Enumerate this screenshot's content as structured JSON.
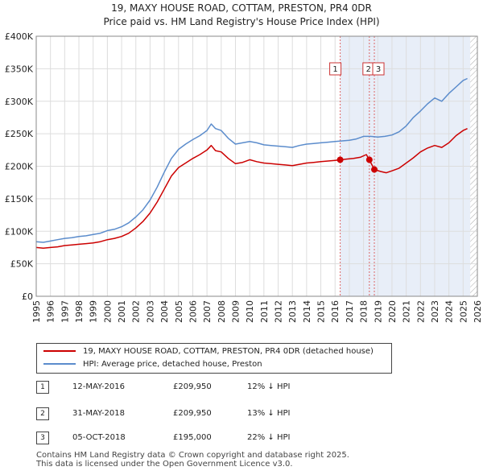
{
  "title_line1": "19, MAXY HOUSE ROAD, COTTAM, PRESTON, PR4 0DR",
  "title_line2": "Price paid vs. HM Land Registry's House Price Index (HPI)",
  "chart_data": {
    "type": "line",
    "xlim": [
      1995,
      2026
    ],
    "ylim": [
      0,
      400000
    ],
    "yticks": [
      0,
      50000,
      100000,
      150000,
      200000,
      250000,
      300000,
      350000,
      400000
    ],
    "ytick_labels": [
      "£0",
      "£50K",
      "£100K",
      "£150K",
      "£200K",
      "£250K",
      "£300K",
      "£350K",
      "£400K"
    ],
    "xticks": [
      1995,
      1996,
      1997,
      1998,
      1999,
      2000,
      2001,
      2002,
      2003,
      2004,
      2005,
      2006,
      2007,
      2008,
      2009,
      2010,
      2011,
      2012,
      2013,
      2014,
      2015,
      2016,
      2017,
      2018,
      2019,
      2020,
      2021,
      2022,
      2023,
      2024,
      2025,
      2026
    ],
    "grid": true,
    "shaded_region": [
      2016.36,
      2025.5
    ],
    "hatched_region": [
      2025.5,
      2026
    ],
    "series": [
      {
        "name": "19, MAXY HOUSE ROAD, COTTAM, PRESTON, PR4 0DR (detached house)",
        "color": "#cc0000",
        "x": [
          1995,
          1995.5,
          1996,
          1996.5,
          1997,
          1997.5,
          1998,
          1998.5,
          1999,
          1999.5,
          2000,
          2000.5,
          2001,
          2001.5,
          2002,
          2002.5,
          2003,
          2003.5,
          2004,
          2004.5,
          2005,
          2005.5,
          2006,
          2006.5,
          2007,
          2007.3,
          2007.6,
          2008,
          2008.5,
          2009,
          2009.5,
          2010,
          2010.5,
          2011,
          2011.5,
          2012,
          2012.5,
          2013,
          2013.5,
          2014,
          2014.5,
          2015,
          2015.5,
          2016,
          2016.36,
          2016.8,
          2017.3,
          2017.8,
          2018.2,
          2018.41,
          2018.76,
          2019.2,
          2019.6,
          2020,
          2020.5,
          2021,
          2021.5,
          2022,
          2022.5,
          2023,
          2023.5,
          2024,
          2024.5,
          2025,
          2025.3
        ],
        "values": [
          75000,
          74000,
          75000,
          76000,
          78000,
          79000,
          80000,
          81000,
          82000,
          84000,
          87000,
          89000,
          92000,
          97000,
          105000,
          115000,
          128000,
          145000,
          165000,
          185000,
          198000,
          205000,
          212000,
          218000,
          225000,
          232000,
          224000,
          222000,
          212000,
          204000,
          206000,
          210000,
          207000,
          205000,
          204000,
          203000,
          202000,
          201000,
          203000,
          205000,
          206000,
          207000,
          208000,
          209000,
          209950,
          211000,
          212000,
          214000,
          218000,
          209950,
          195000,
          192000,
          190000,
          193000,
          197000,
          205000,
          213000,
          222000,
          228000,
          232000,
          229000,
          236000,
          247000,
          255000,
          258000
        ]
      },
      {
        "name": "HPI: Average price, detached house, Preston",
        "color": "#5b8ccc",
        "x": [
          1995,
          1995.5,
          1996,
          1996.5,
          1997,
          1997.5,
          1998,
          1998.5,
          1999,
          1999.5,
          2000,
          2000.5,
          2001,
          2001.5,
          2002,
          2002.5,
          2003,
          2003.5,
          2004,
          2004.5,
          2005,
          2005.5,
          2006,
          2006.5,
          2007,
          2007.3,
          2007.6,
          2008,
          2008.5,
          2009,
          2009.5,
          2010,
          2010.5,
          2011,
          2011.5,
          2012,
          2012.5,
          2013,
          2013.5,
          2014,
          2014.5,
          2015,
          2015.5,
          2016,
          2016.5,
          2017,
          2017.5,
          2018,
          2018.5,
          2019,
          2019.5,
          2020,
          2020.5,
          2021,
          2021.5,
          2022,
          2022.5,
          2023,
          2023.5,
          2024,
          2024.5,
          2025,
          2025.3
        ],
        "values": [
          84000,
          83000,
          85000,
          87000,
          89000,
          90000,
          92000,
          93000,
          95000,
          97000,
          101000,
          103000,
          107000,
          113000,
          122000,
          133000,
          148000,
          168000,
          191000,
          212000,
          226000,
          234000,
          241000,
          247000,
          255000,
          265000,
          258000,
          255000,
          243000,
          234000,
          236000,
          238000,
          236000,
          233000,
          232000,
          231000,
          230000,
          229000,
          232000,
          234000,
          235000,
          236000,
          237000,
          238000,
          239000,
          240000,
          242000,
          246000,
          246000,
          245000,
          246000,
          248000,
          253000,
          262000,
          275000,
          285000,
          296000,
          305000,
          300000,
          312000,
          322000,
          332000,
          335000
        ]
      }
    ],
    "markers": [
      {
        "label": "1",
        "x": 2016.36,
        "y": 209950
      },
      {
        "label": "2",
        "x": 2018.41,
        "y": 209950
      },
      {
        "label": "3",
        "x": 2018.76,
        "y": 195000
      }
    ]
  },
  "legend": {
    "property_label": "19, MAXY HOUSE ROAD, COTTAM, PRESTON, PR4 0DR (detached house)",
    "hpi_label": "HPI: Average price, detached house, Preston"
  },
  "transactions": [
    {
      "num": "1",
      "date": "12-MAY-2016",
      "price": "£209,950",
      "diff": "12% ↓ HPI"
    },
    {
      "num": "2",
      "date": "31-MAY-2018",
      "price": "£209,950",
      "diff": "13% ↓ HPI"
    },
    {
      "num": "3",
      "date": "05-OCT-2018",
      "price": "£195,000",
      "diff": "22% ↓ HPI"
    }
  ],
  "footer": {
    "line1": "Contains HM Land Registry data © Crown copyright and database right 2025.",
    "line2": "This data is licensed under the Open Government Licence v3.0."
  },
  "colors": {
    "property": "#cc0000",
    "hpi": "#5b8ccc",
    "shade": "#e8eef8",
    "grid": "#dddddd"
  }
}
